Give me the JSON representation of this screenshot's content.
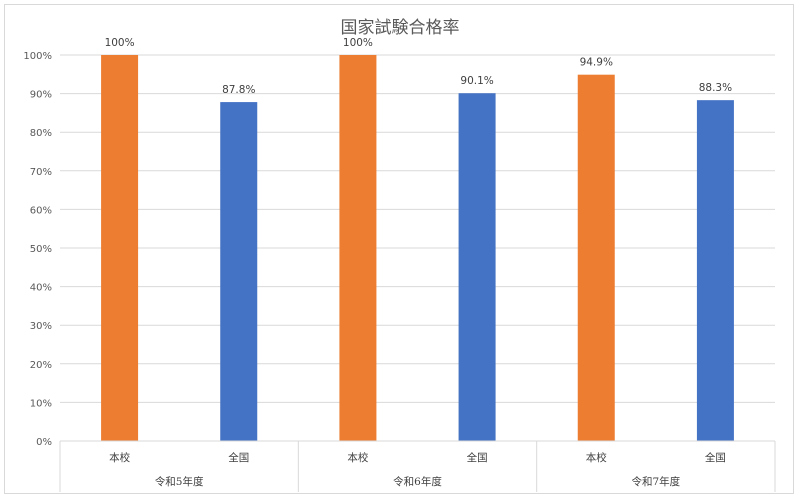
{
  "chart_data": {
    "type": "bar",
    "title": "国家試験合格率",
    "xlabel": "",
    "ylabel": "",
    "ylim": [
      0,
      100
    ],
    "y_ticks": [
      0,
      10,
      20,
      30,
      40,
      50,
      60,
      70,
      80,
      90,
      100
    ],
    "y_tick_labels": [
      "0%",
      "10%",
      "20%",
      "30%",
      "40%",
      "50%",
      "60%",
      "70%",
      "80%",
      "90%",
      "100%"
    ],
    "grid": true,
    "legend": "none",
    "groups": [
      {
        "label": "令和5年度",
        "bars": [
          {
            "category": "本校",
            "value": 100,
            "label": "100%",
            "color": "#ED7D31"
          },
          {
            "category": "全国",
            "value": 87.8,
            "label": "87.8%",
            "color": "#4472C4"
          }
        ]
      },
      {
        "label": "令和6年度",
        "bars": [
          {
            "category": "本校",
            "value": 100,
            "label": "100%",
            "color": "#ED7D31"
          },
          {
            "category": "全国",
            "value": 90.1,
            "label": "90.1%",
            "color": "#4472C4"
          }
        ]
      },
      {
        "label": "令和7年度",
        "bars": [
          {
            "category": "本校",
            "value": 94.9,
            "label": "94.9%",
            "color": "#ED7D31"
          },
          {
            "category": "全国",
            "value": 88.3,
            "label": "88.3%",
            "color": "#4472C4"
          }
        ]
      }
    ]
  }
}
